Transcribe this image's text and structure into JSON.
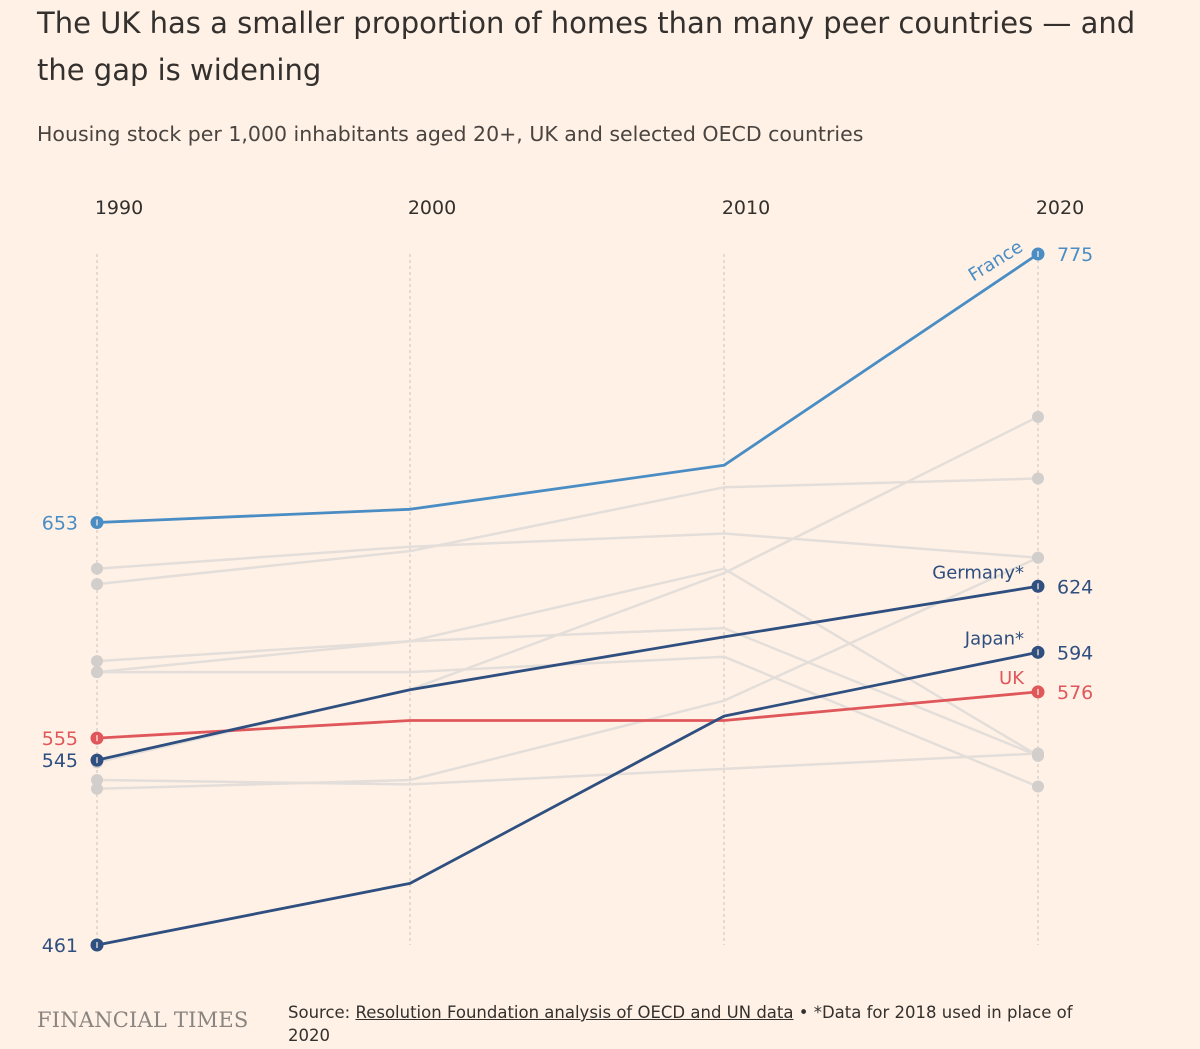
{
  "title": "The UK has a smaller proportion of homes than many peer countries — and the gap is widening",
  "subtitle": "Housing stock per 1,000 inhabitants aged 20+, UK and selected OECD countries",
  "footer": {
    "logo": "FINANCIAL TIMES",
    "source_prefix": "Source: ",
    "source_link": "Resolution Foundation analysis of OECD and UN data",
    "source_suffix": " • *Data for 2018 used in place of 2020"
  },
  "colors": {
    "background": "#FFF1E5",
    "france": "#4A8DC4",
    "uk": "#E0575B",
    "dark_blue": "#2E4F80",
    "other": "#E4DEDA",
    "other_dot": "#D2CECB",
    "grid": "#C9C3BF"
  },
  "chart_data": {
    "type": "line",
    "x": [
      1990,
      2000,
      2010,
      2020
    ],
    "x_tick_labels": [
      "1990",
      "2000",
      "2010",
      "2020"
    ],
    "ylim": [
      461,
      775
    ],
    "grid": "vertical dashed lines at each year",
    "legend": "direct labels at line ends",
    "series": [
      {
        "name": "France",
        "values": [
          653,
          659,
          679,
          775
        ],
        "color": "#4A8DC4",
        "highlight": true,
        "start_label": "653",
        "end_label": "775",
        "dot_color": "#4A8DC4"
      },
      {
        "name": "Germany*",
        "values": [
          545,
          577,
          601,
          624
        ],
        "color": "#2E4F80",
        "highlight": true,
        "start_label": "545",
        "end_label": "624",
        "dot_color": "#2E4F80"
      },
      {
        "name": "Japan*",
        "values": [
          461,
          489,
          565,
          594
        ],
        "color": "#2E4F80",
        "highlight": true,
        "start_label": "461",
        "end_label": "594",
        "dot_color": "#2E4F80"
      },
      {
        "name": "UK",
        "values": [
          555,
          563,
          563,
          576
        ],
        "color": "#E0575B",
        "highlight": true,
        "start_label": "555",
        "end_label": "576",
        "dot_color": "#E0575B"
      },
      {
        "values": [
          632,
          642,
          648,
          637
        ],
        "color": "#E4DEDA",
        "highlight": false
      },
      {
        "values": [
          625,
          640,
          669,
          673
        ],
        "color": "#E4DEDA",
        "highlight": false
      },
      {
        "values": [
          590,
          599,
          605,
          547
        ],
        "color": "#E4DEDA",
        "highlight": false
      },
      {
        "values": [
          585,
          599,
          632,
          547
        ],
        "color": "#E4DEDA",
        "highlight": false
      },
      {
        "values": [
          585,
          585,
          592,
          533
        ],
        "color": "#E4DEDA",
        "highlight": false
      },
      {
        "values": [
          532,
          536,
          572,
          637
        ],
        "color": "#E4DEDA",
        "highlight": false
      },
      {
        "values": [
          544,
          577,
          630,
          701
        ],
        "color": "#E4DEDA",
        "highlight": false
      },
      {
        "values": [
          536,
          534,
          541,
          548
        ],
        "color": "#E4DEDA",
        "highlight": false
      }
    ]
  }
}
